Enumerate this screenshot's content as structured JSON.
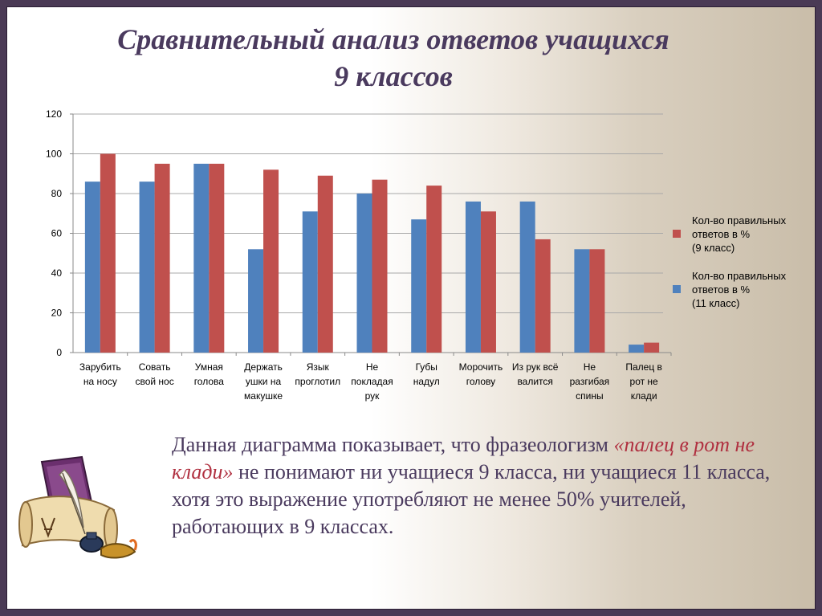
{
  "slide": {
    "title_line1": "Сравнительный анализ  ответов учащихся",
    "title_line2": "9 классов",
    "caption_part1": "Данная диаграмма показывает, что  фразеологизм ",
    "caption_highlight": "«палец в рот не клади»",
    "caption_part2": " не понимают ни учащиеся 9 класса, ни учащиеся 11 класса, хотя это выражение употребляют не менее 50% учителей, работающих в 9 классах."
  },
  "legend": [
    {
      "label": "Кол-во правильных\nответов в %\n(9 класс)",
      "color": "#c0504d"
    },
    {
      "label": "Кол-во правильных\nответов в %\n(11 класс)",
      "color": "#4f81bd"
    }
  ],
  "chart_data": {
    "type": "bar",
    "categories": [
      [
        "Зарубить",
        "на носу"
      ],
      [
        "Совать",
        "свой нос"
      ],
      [
        "Умная",
        "голова"
      ],
      [
        "Держать",
        "ушки на",
        "макушке"
      ],
      [
        "Язык",
        "проглотил"
      ],
      [
        "Не",
        "покладая",
        "рук"
      ],
      [
        "Губы",
        "надул"
      ],
      [
        "Морочить",
        "голову"
      ],
      [
        "Из рук всё",
        "валится"
      ],
      [
        "Не",
        "разгибая",
        "спины"
      ],
      [
        "Палец в",
        "рот не",
        "клади"
      ]
    ],
    "series": [
      {
        "name": "Кол-во правильных ответов в % (11 класс)",
        "color": "#4f81bd",
        "values": [
          86,
          86,
          95,
          52,
          71,
          80,
          67,
          76,
          76,
          52,
          4
        ]
      },
      {
        "name": "Кол-во правильных ответов в % (9 класс)",
        "color": "#c0504d",
        "values": [
          100,
          95,
          95,
          92,
          89,
          87,
          84,
          71,
          57,
          52,
          5
        ]
      }
    ],
    "yticks": [
      "0",
      "20",
      "40",
      "60",
      "80",
      "100",
      "120"
    ],
    "ylim": [
      0,
      120
    ],
    "grid": true,
    "legend_position": "right"
  }
}
